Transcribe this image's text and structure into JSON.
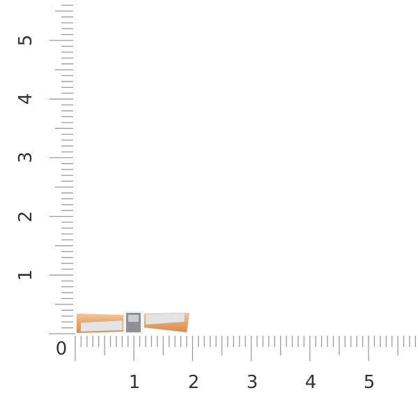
{
  "ruler": {
    "x_labels": [
      "0",
      "1",
      "2",
      "3",
      "4",
      "5"
    ],
    "y_labels": [
      "1",
      "2",
      "3",
      "4",
      "5"
    ],
    "tick_color": "#9a9a9a",
    "label_color": "#333333"
  },
  "product": {
    "type": "ring",
    "gold_color": "#e8a468",
    "metal_color": "#e9e9e9"
  }
}
